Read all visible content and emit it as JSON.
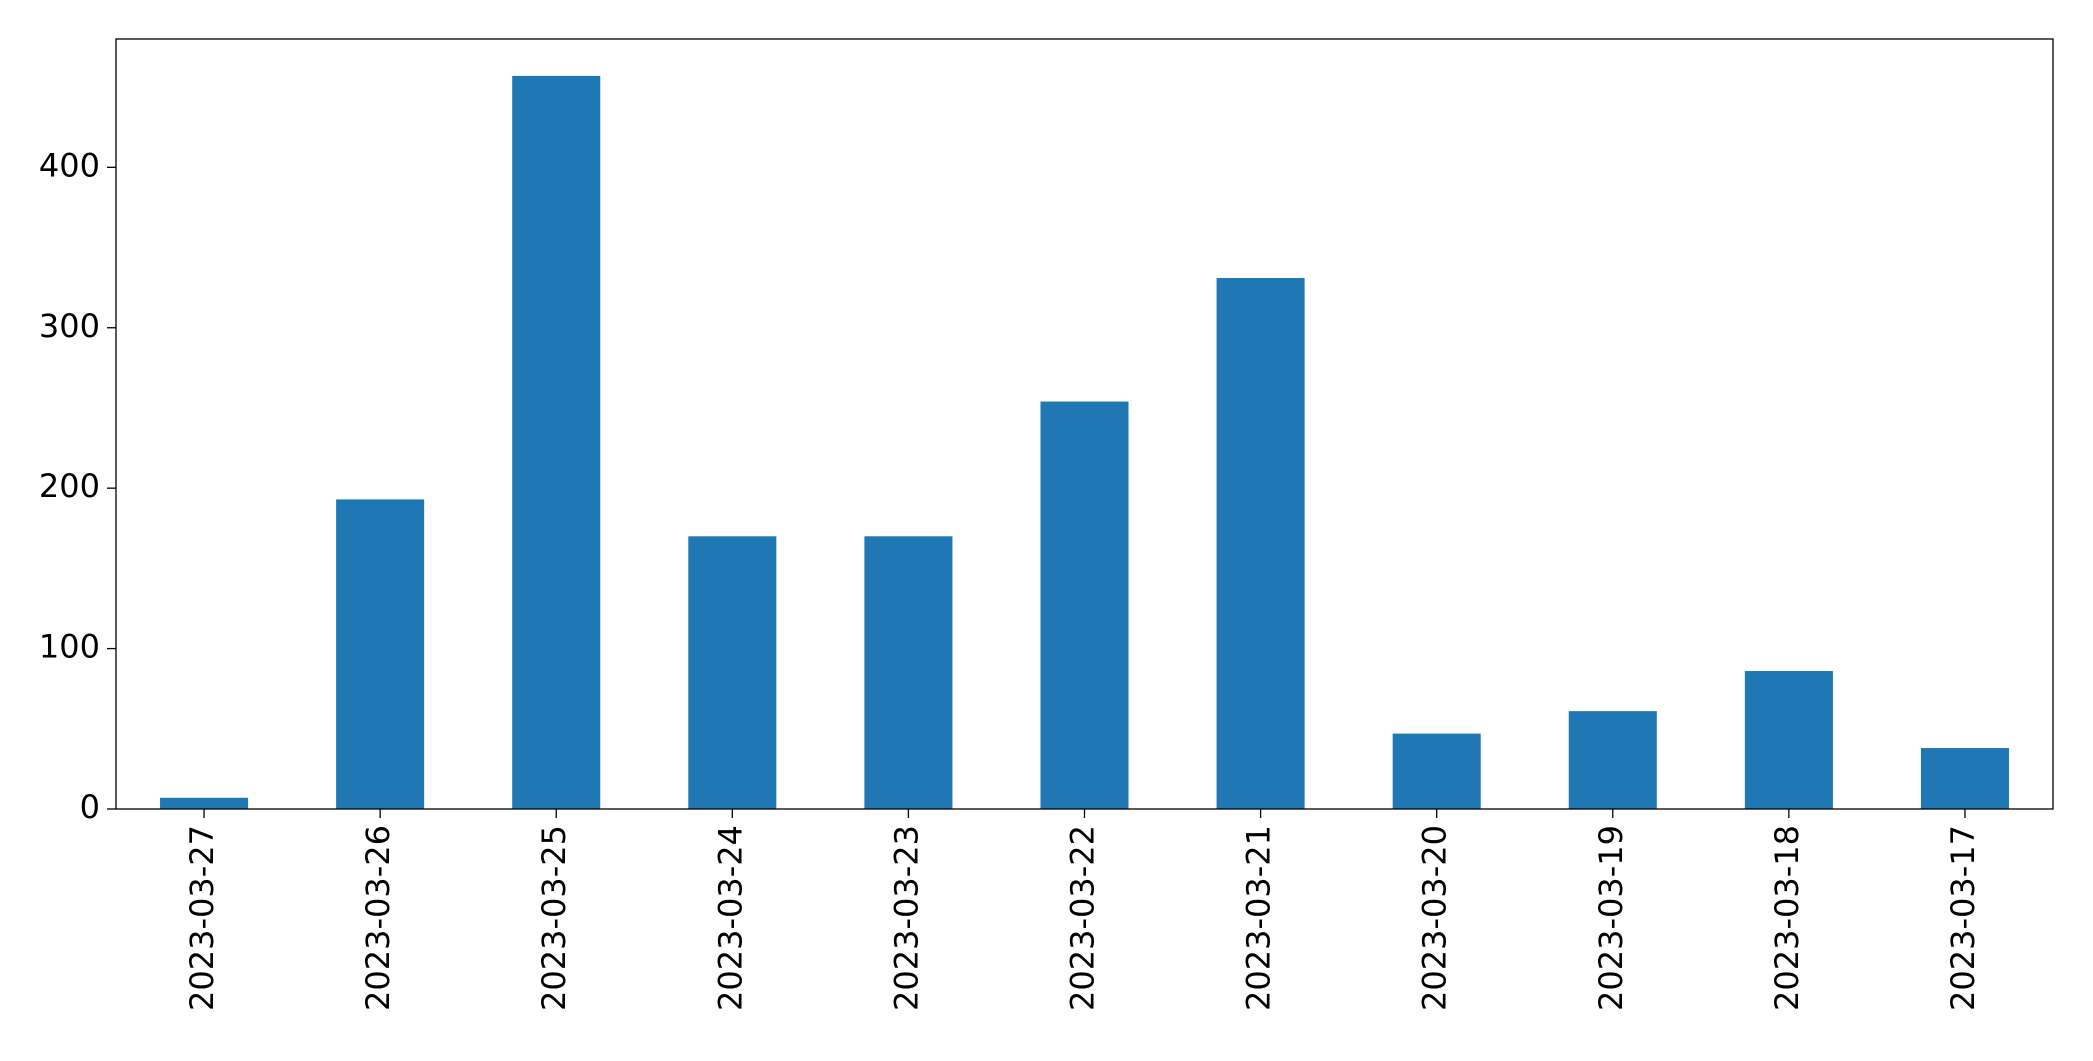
{
  "chart_data": {
    "type": "bar",
    "categories": [
      "2023-03-27",
      "2023-03-26",
      "2023-03-25",
      "2023-03-24",
      "2023-03-23",
      "2023-03-22",
      "2023-03-21",
      "2023-03-20",
      "2023-03-19",
      "2023-03-18",
      "2023-03-17"
    ],
    "values": [
      7,
      193,
      457,
      170,
      170,
      254,
      331,
      47,
      61,
      86,
      38
    ],
    "color": "#1f77b4",
    "ylim": [
      0,
      480
    ],
    "yticks": [
      0,
      100,
      200,
      300,
      400
    ],
    "grid": false
  }
}
